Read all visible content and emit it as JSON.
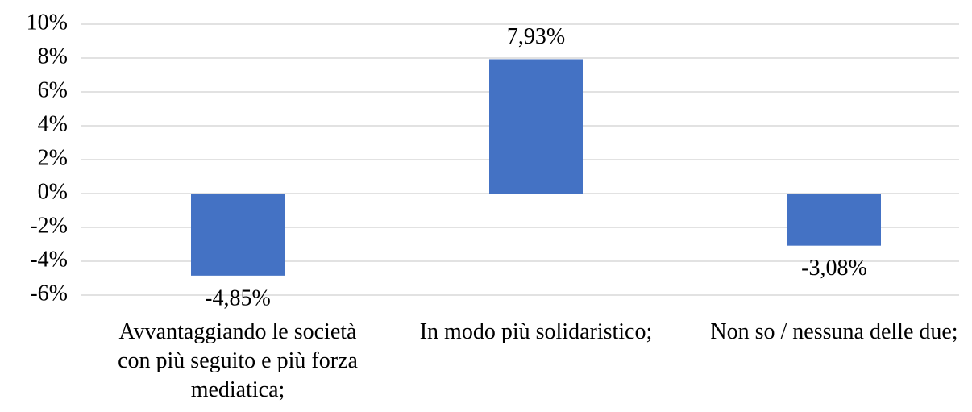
{
  "chart_data": {
    "type": "bar",
    "categories": [
      "Avvantaggiando le società con più seguito e più forza mediatica;",
      "In modo più solidaristico;",
      "Non so / nessuna delle due;"
    ],
    "values": [
      -4.85,
      7.93,
      -3.08
    ],
    "value_labels": [
      "-4,85%",
      "7,93%",
      "-3,08%"
    ],
    "color": "#4472c4",
    "ylim": [
      -6,
      10
    ],
    "yticks": [
      {
        "value": -6,
        "label": "-6%"
      },
      {
        "value": -4,
        "label": "-4%"
      },
      {
        "value": -2,
        "label": "-2%"
      },
      {
        "value": 0,
        "label": "0%"
      },
      {
        "value": 2,
        "label": "2%"
      },
      {
        "value": 4,
        "label": "4%"
      },
      {
        "value": 6,
        "label": "6%"
      },
      {
        "value": 8,
        "label": "8%"
      },
      {
        "value": 10,
        "label": "10%"
      }
    ],
    "grid": true
  }
}
